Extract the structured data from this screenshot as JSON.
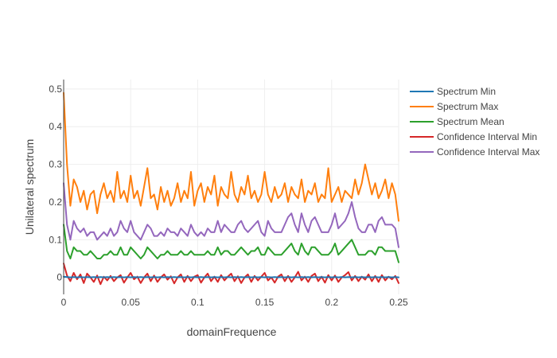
{
  "chart_data": {
    "type": "line",
    "title": "",
    "xlabel": "domainFrequence",
    "ylabel": "Unilateral spectrum",
    "xlim": [
      0,
      0.25
    ],
    "ylim": [
      -0.045,
      0.525
    ],
    "x_ticks": [
      0,
      0.05,
      0.1,
      0.15,
      0.2,
      0.25
    ],
    "x_tick_labels": [
      "0",
      "0.05",
      "0.1",
      "0.15",
      "0.2",
      "0.25"
    ],
    "y_ticks": [
      0,
      0.1,
      0.2,
      0.3,
      0.4,
      0.5
    ],
    "y_tick_labels": [
      "0",
      "0.1",
      "0.2",
      "0.3",
      "0.4",
      "0.5"
    ],
    "grid": true,
    "legend_position": "right",
    "x": [
      0,
      0.0025,
      0.005,
      0.0075,
      0.01,
      0.0125,
      0.015,
      0.0175,
      0.02,
      0.0225,
      0.025,
      0.0275,
      0.03,
      0.0325,
      0.035,
      0.0375,
      0.04,
      0.0425,
      0.045,
      0.0475,
      0.05,
      0.0525,
      0.055,
      0.0575,
      0.06,
      0.0625,
      0.065,
      0.0675,
      0.07,
      0.0725,
      0.075,
      0.0775,
      0.08,
      0.0825,
      0.085,
      0.0875,
      0.09,
      0.0925,
      0.095,
      0.0975,
      0.1,
      0.1025,
      0.105,
      0.1075,
      0.11,
      0.1125,
      0.115,
      0.1175,
      0.12,
      0.1225,
      0.125,
      0.1275,
      0.13,
      0.1325,
      0.135,
      0.1375,
      0.14,
      0.1425,
      0.145,
      0.1475,
      0.15,
      0.1525,
      0.155,
      0.1575,
      0.16,
      0.1625,
      0.165,
      0.1675,
      0.17,
      0.1725,
      0.175,
      0.1775,
      0.18,
      0.1825,
      0.185,
      0.1875,
      0.19,
      0.1925,
      0.195,
      0.1975,
      0.2,
      0.2025,
      0.205,
      0.2075,
      0.21,
      0.2125,
      0.215,
      0.2175,
      0.22,
      0.2225,
      0.225,
      0.2275,
      0.23,
      0.2325,
      0.235,
      0.2375,
      0.24,
      0.2425,
      0.245,
      0.2475,
      0.25
    ],
    "series": [
      {
        "name": "Spectrum Min",
        "color": "#1f77b4",
        "values": [
          0.002,
          0.001,
          0.0,
          0.001,
          0.0,
          0.001,
          0.0,
          0.001,
          0.0,
          0.001,
          0.0,
          0.001,
          0.0,
          0.001,
          0.0,
          0.001,
          0.0,
          0.001,
          0.0,
          0.001,
          0.0,
          0.001,
          0.0,
          0.001,
          0.0,
          0.001,
          0.0,
          0.001,
          0.0,
          0.001,
          0.0,
          0.001,
          0.0,
          0.001,
          0.0,
          0.001,
          0.0,
          0.001,
          0.0,
          0.001,
          0.0,
          0.001,
          0.0,
          0.001,
          0.0,
          0.001,
          0.0,
          0.001,
          0.0,
          0.001,
          0.0,
          0.001,
          0.0,
          0.001,
          0.0,
          0.001,
          0.0,
          0.001,
          0.0,
          0.001,
          0.0,
          0.001,
          0.0,
          0.001,
          0.0,
          0.001,
          0.0,
          0.001,
          0.0,
          0.001,
          0.0,
          0.001,
          0.0,
          0.001,
          0.0,
          0.001,
          0.0,
          0.001,
          0.0,
          0.001,
          0.0,
          0.001,
          0.0,
          0.001,
          0.0,
          0.001,
          0.0,
          0.001,
          0.0,
          0.001,
          0.0,
          0.001,
          0.0,
          0.001,
          0.0,
          0.001,
          0.0,
          0.001,
          0.0,
          0.001,
          0.0
        ]
      },
      {
        "name": "Spectrum Max",
        "color": "#ff7f0e",
        "values": [
          0.49,
          0.3,
          0.19,
          0.26,
          0.24,
          0.2,
          0.23,
          0.18,
          0.22,
          0.23,
          0.17,
          0.22,
          0.25,
          0.21,
          0.23,
          0.2,
          0.28,
          0.21,
          0.23,
          0.2,
          0.27,
          0.21,
          0.23,
          0.19,
          0.24,
          0.29,
          0.21,
          0.22,
          0.18,
          0.24,
          0.2,
          0.23,
          0.19,
          0.21,
          0.25,
          0.2,
          0.23,
          0.21,
          0.28,
          0.19,
          0.23,
          0.25,
          0.2,
          0.24,
          0.22,
          0.27,
          0.19,
          0.24,
          0.22,
          0.21,
          0.28,
          0.22,
          0.2,
          0.24,
          0.22,
          0.27,
          0.21,
          0.23,
          0.2,
          0.22,
          0.28,
          0.22,
          0.2,
          0.24,
          0.21,
          0.22,
          0.25,
          0.2,
          0.24,
          0.22,
          0.21,
          0.26,
          0.2,
          0.23,
          0.22,
          0.25,
          0.2,
          0.22,
          0.21,
          0.29,
          0.2,
          0.22,
          0.24,
          0.2,
          0.23,
          0.22,
          0.21,
          0.26,
          0.22,
          0.25,
          0.3,
          0.26,
          0.22,
          0.25,
          0.21,
          0.23,
          0.26,
          0.21,
          0.25,
          0.22,
          0.15
        ]
      },
      {
        "name": "Spectrum Mean",
        "color": "#2ca02c",
        "values": [
          0.14,
          0.07,
          0.05,
          0.08,
          0.07,
          0.07,
          0.06,
          0.06,
          0.07,
          0.06,
          0.05,
          0.05,
          0.06,
          0.06,
          0.07,
          0.06,
          0.06,
          0.08,
          0.06,
          0.06,
          0.08,
          0.07,
          0.06,
          0.05,
          0.06,
          0.08,
          0.07,
          0.06,
          0.05,
          0.06,
          0.06,
          0.07,
          0.06,
          0.06,
          0.06,
          0.07,
          0.06,
          0.06,
          0.07,
          0.06,
          0.06,
          0.06,
          0.06,
          0.07,
          0.06,
          0.06,
          0.08,
          0.06,
          0.07,
          0.07,
          0.06,
          0.06,
          0.07,
          0.08,
          0.07,
          0.06,
          0.07,
          0.07,
          0.08,
          0.06,
          0.06,
          0.08,
          0.07,
          0.06,
          0.06,
          0.06,
          0.07,
          0.08,
          0.09,
          0.07,
          0.06,
          0.09,
          0.07,
          0.06,
          0.08,
          0.08,
          0.07,
          0.06,
          0.06,
          0.06,
          0.07,
          0.09,
          0.06,
          0.07,
          0.08,
          0.09,
          0.1,
          0.08,
          0.06,
          0.06,
          0.06,
          0.07,
          0.07,
          0.06,
          0.08,
          0.08,
          0.07,
          0.07,
          0.07,
          0.07,
          0.04
        ]
      },
      {
        "name": "Confidence Interval Min",
        "color": "#d62728",
        "values": [
          0.037,
          0.005,
          -0.01,
          0.012,
          -0.005,
          0.008,
          -0.015,
          0.01,
          0.0,
          -0.012,
          0.005,
          -0.018,
          0.002,
          -0.008,
          0.004,
          -0.01,
          0.0,
          0.006,
          -0.014,
          0.0,
          0.012,
          -0.005,
          0.002,
          -0.015,
          0.0,
          0.01,
          -0.01,
          0.005,
          -0.012,
          0.0,
          0.008,
          -0.006,
          0.003,
          -0.016,
          0.0,
          0.008,
          -0.012,
          0.004,
          -0.01,
          0.002,
          0.006,
          -0.014,
          0.0,
          0.01,
          -0.01,
          0.002,
          -0.012,
          0.006,
          -0.008,
          0.002,
          0.01,
          -0.01,
          0.003,
          -0.015,
          0.0,
          0.008,
          -0.012,
          0.004,
          -0.008,
          0.002,
          0.012,
          -0.008,
          0.0,
          -0.014,
          0.002,
          0.008,
          -0.01,
          0.004,
          -0.012,
          0.0,
          0.015,
          -0.008,
          0.002,
          -0.012,
          0.004,
          0.01,
          -0.01,
          0.002,
          -0.014,
          0.006,
          -0.008,
          0.005,
          -0.012,
          0.0,
          0.006,
          0.014,
          -0.008,
          0.004,
          -0.01,
          0.002,
          -0.006,
          0.008,
          -0.01,
          0.004,
          -0.012,
          0.006,
          -0.008,
          0.002,
          -0.005,
          0.004,
          -0.015
        ]
      },
      {
        "name": "Confidence Interval Max",
        "color": "#9467bd",
        "values": [
          0.25,
          0.14,
          0.1,
          0.15,
          0.13,
          0.12,
          0.13,
          0.11,
          0.12,
          0.12,
          0.1,
          0.11,
          0.12,
          0.11,
          0.13,
          0.11,
          0.12,
          0.15,
          0.13,
          0.12,
          0.15,
          0.12,
          0.11,
          0.1,
          0.12,
          0.14,
          0.13,
          0.11,
          0.11,
          0.12,
          0.11,
          0.13,
          0.12,
          0.12,
          0.11,
          0.13,
          0.12,
          0.11,
          0.14,
          0.12,
          0.11,
          0.12,
          0.11,
          0.13,
          0.12,
          0.12,
          0.15,
          0.12,
          0.14,
          0.13,
          0.12,
          0.12,
          0.14,
          0.15,
          0.13,
          0.12,
          0.13,
          0.14,
          0.15,
          0.12,
          0.11,
          0.15,
          0.13,
          0.12,
          0.12,
          0.12,
          0.14,
          0.16,
          0.17,
          0.14,
          0.12,
          0.17,
          0.14,
          0.12,
          0.15,
          0.16,
          0.14,
          0.12,
          0.12,
          0.12,
          0.14,
          0.17,
          0.13,
          0.14,
          0.15,
          0.17,
          0.2,
          0.16,
          0.13,
          0.12,
          0.12,
          0.14,
          0.14,
          0.12,
          0.15,
          0.16,
          0.14,
          0.14,
          0.14,
          0.13,
          0.08
        ]
      }
    ]
  }
}
